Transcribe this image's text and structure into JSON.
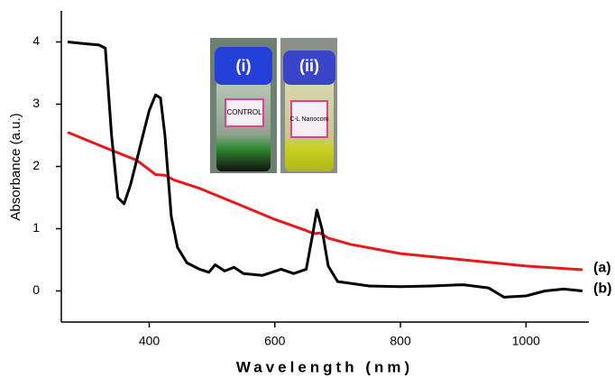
{
  "chart_data": {
    "type": "line",
    "xlabel": "Wavelength (nm)",
    "ylabel": "Absorbance (a.u.)",
    "xlim": [
      260,
      1100
    ],
    "xticks": [
      400,
      600,
      800,
      1000
    ],
    "ylim": [
      -0.5,
      4.5
    ],
    "yticks": [
      0,
      1,
      2,
      3,
      4
    ],
    "grid": false,
    "inset_labels": [
      "(i)",
      "(ii)"
    ],
    "vial_labels": [
      "CONTROL",
      "C-L Nanocom"
    ],
    "series": [
      {
        "name": "(a)",
        "color": "#e8191b",
        "x": [
          270,
          330,
          380,
          410,
          425,
          440,
          480,
          540,
          600,
          650,
          662,
          672,
          685,
          720,
          800,
          900,
          1000,
          1090
        ],
        "values": [
          2.55,
          2.3,
          2.1,
          1.87,
          1.86,
          1.78,
          1.65,
          1.4,
          1.15,
          0.97,
          0.92,
          0.93,
          0.85,
          0.75,
          0.6,
          0.5,
          0.4,
          0.34
        ]
      },
      {
        "name": "(b)",
        "color": "#000000",
        "x": [
          270,
          300,
          320,
          330,
          340,
          350,
          360,
          370,
          380,
          390,
          400,
          410,
          418,
          425,
          435,
          445,
          460,
          480,
          495,
          505,
          520,
          535,
          550,
          580,
          610,
          630,
          650,
          660,
          667,
          675,
          685,
          700,
          750,
          800,
          850,
          900,
          940,
          965,
          1000,
          1030,
          1060,
          1090
        ],
        "values": [
          4.0,
          3.97,
          3.95,
          3.9,
          2.5,
          1.5,
          1.4,
          1.7,
          2.1,
          2.5,
          2.9,
          3.15,
          3.1,
          2.5,
          1.2,
          0.7,
          0.45,
          0.35,
          0.3,
          0.42,
          0.32,
          0.38,
          0.28,
          0.25,
          0.35,
          0.28,
          0.35,
          0.9,
          1.3,
          1.0,
          0.4,
          0.15,
          0.08,
          0.07,
          0.08,
          0.1,
          0.05,
          -0.1,
          -0.08,
          0.0,
          0.03,
          0.0
        ]
      }
    ]
  }
}
